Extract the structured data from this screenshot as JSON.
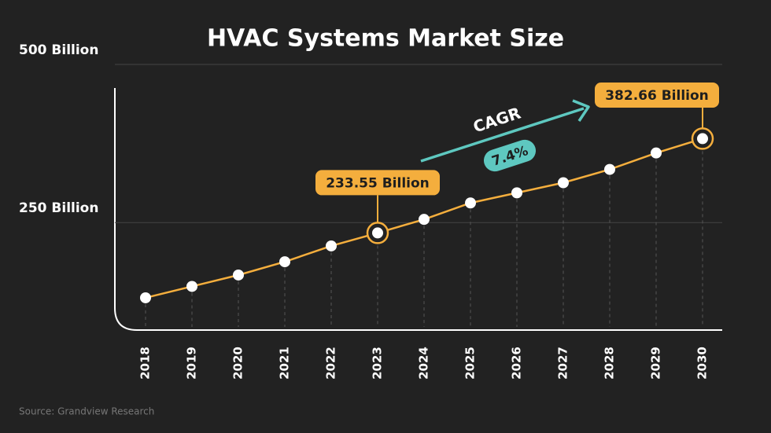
{
  "chart_data": {
    "type": "line",
    "title": "HVAC Systems Market Size",
    "categories": [
      "2018",
      "2019",
      "2020",
      "2021",
      "2022",
      "2023",
      "2024",
      "2025",
      "2026",
      "2027",
      "2028",
      "2029",
      "2030"
    ],
    "values": [
      131,
      149,
      167,
      188,
      213,
      233.55,
      255,
      281,
      297,
      313,
      334,
      360,
      382.66
    ],
    "value_labels": [
      null,
      null,
      null,
      null,
      null,
      "233.55 Billion",
      null,
      null,
      null,
      null,
      null,
      null,
      "382.66 Billion"
    ],
    "color": "#f4ae3d",
    "ylim": [
      80,
      500
    ],
    "yticks": [
      {
        "value": 250,
        "label": "250 Billion"
      },
      {
        "value": 500,
        "label": "500 Billion"
      }
    ],
    "grid": true,
    "annotations": {
      "cagr_label": "CAGR",
      "cagr_value": "7.4%"
    },
    "source": "Source: Grandview Research"
  }
}
